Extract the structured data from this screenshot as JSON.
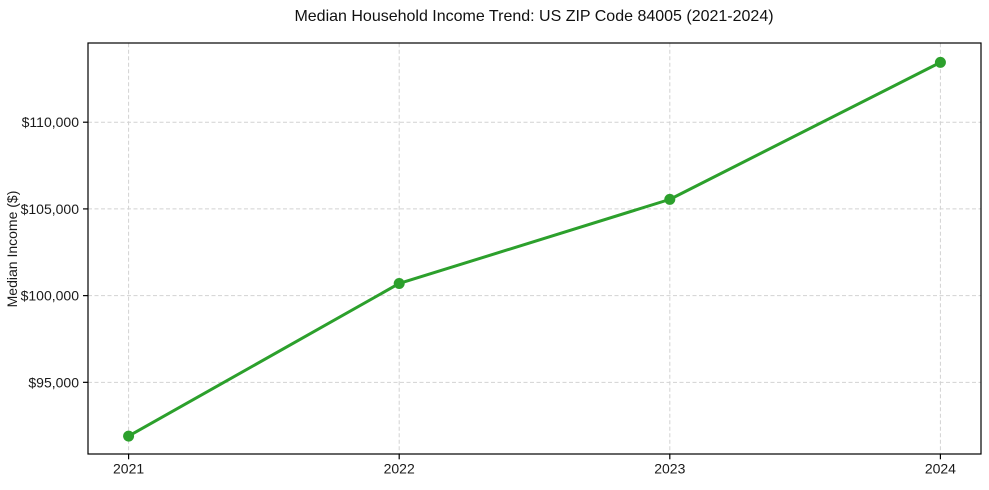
{
  "chart_data": {
    "type": "line",
    "title": "Median Household Income Trend: US ZIP Code 84005 (2021-2024)",
    "xlabel": "",
    "ylabel": "Median Income ($)",
    "x": [
      2021,
      2022,
      2023,
      2024
    ],
    "values": [
      91900,
      100700,
      105550,
      113450
    ],
    "series_name": "Median Household Income",
    "x_ticks": [
      {
        "value": 2021,
        "label": "2021"
      },
      {
        "value": 2022,
        "label": "2022"
      },
      {
        "value": 2023,
        "label": "2023"
      },
      {
        "value": 2024,
        "label": "2024"
      }
    ],
    "y_ticks": [
      {
        "value": 95000,
        "label": "$95,000"
      },
      {
        "value": 100000,
        "label": "$100,000"
      },
      {
        "value": 105000,
        "label": "$105,000"
      },
      {
        "value": 110000,
        "label": "$110,000"
      }
    ],
    "xlim": [
      2020.85,
      2024.15
    ],
    "ylim": [
      90850,
      114550
    ],
    "grid": true,
    "grid_style": "dashed",
    "legend_position": "none",
    "line_color": "#2ca02c",
    "marker_color": "#2ca02c",
    "grid_color": "#d2d2d2",
    "spine_color": "#000000",
    "background_color": "#ffffff"
  }
}
